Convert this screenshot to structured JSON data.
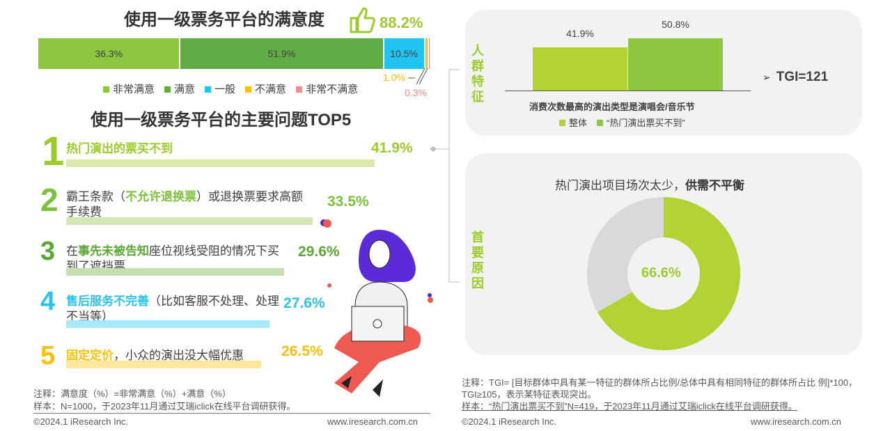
{
  "satisfaction": {
    "title": "使用一级票务平台的满意度",
    "total": "88.2%",
    "segments": [
      {
        "name": "非常满意",
        "value": 36.3,
        "label": "36.3%",
        "color": "#8dc63f"
      },
      {
        "name": "满意",
        "value": 51.9,
        "label": "51.9%",
        "color": "#62ac45"
      },
      {
        "name": "一般",
        "value": 10.5,
        "label": "10.5%",
        "color": "#1fc5f0"
      },
      {
        "name": "不满意",
        "value": 1.0,
        "label": "1.0%",
        "color": "#ffc000"
      },
      {
        "name": "非常不满意",
        "value": 0.3,
        "label": "0.3%",
        "color": "#f28b8b"
      }
    ]
  },
  "problems": {
    "title": "使用一级票务平台的主要问题TOP5",
    "items": [
      {
        "rank": "1",
        "pre": "",
        "hl": "热门演出的票买不到",
        "post": "",
        "value": 41.9,
        "label": "41.9%",
        "color": "#9ccc2c",
        "bar": "#dbeaa8"
      },
      {
        "rank": "2",
        "pre": "霸王条款（",
        "hl": "不允许退换票",
        "post": "）或退换票要求高额手续费",
        "value": 33.5,
        "label": "33.5%",
        "color": "#7cc13a",
        "bar": "#d3e8b2"
      },
      {
        "rank": "3",
        "pre": "在",
        "hl": "事先未被告知",
        "post": "座位视线受阻的情况下买到了遮挡票",
        "value": 29.6,
        "label": "29.6%",
        "color": "#5aa832",
        "bar": "#c5e0b0"
      },
      {
        "rank": "4",
        "pre": "",
        "hl": "售后服务不完善",
        "post": "（比如客服不处理、处理不当等）",
        "value": 27.6,
        "label": "27.6%",
        "color": "#2bc3ec",
        "bar": "#a6e9f8"
      },
      {
        "rank": "5",
        "pre": "",
        "hl": "固定定价",
        "post": "，小众的演出没大幅优惠",
        "value": 26.5,
        "label": "26.5%",
        "color": "#ffc000",
        "bar": "#ffe699"
      }
    ]
  },
  "left_notes": {
    "note": "注释：满意度（%）=非常满意（%）+满意（%）",
    "sample": "样本：N=1000，于2023年11月通过艾瑞iclick在线平台调研获得。",
    "copyright": "©2024.1 iResearch Inc.",
    "url": "www.iresearch.com.cn"
  },
  "chart_data": [
    {
      "type": "bar",
      "title": "使用一级票务平台的满意度",
      "categories": [
        "非常满意",
        "满意",
        "一般",
        "不满意",
        "非常不满意"
      ],
      "values": [
        36.3,
        51.9,
        10.5,
        1.0,
        0.3
      ],
      "stacked": true,
      "summary": "88.2%"
    },
    {
      "type": "bar",
      "title": "使用一级票务平台的主要问题TOP5",
      "categories": [
        "热门演出的票买不到",
        "霸王条款",
        "事先未被告知座位视线受阻",
        "售后服务不完善",
        "固定定价"
      ],
      "values": [
        41.9,
        33.5,
        29.6,
        27.6,
        26.5
      ]
    },
    {
      "type": "bar",
      "label_side": "人群特征",
      "xlabel": "消费次数最高的演出类型是演唱会/音乐节",
      "series": [
        {
          "name": "整体",
          "value": 41.9,
          "label": "41.9%",
          "color": "#b3d334"
        },
        {
          "name": "“热门演出票买不到”",
          "value": 50.8,
          "label": "50.8%",
          "color": "#8dc63f"
        }
      ],
      "ylim": [
        0,
        60
      ],
      "annotation": "TGI=121"
    },
    {
      "type": "pie",
      "label_side": "首要原因",
      "title_normal": "热门演出项目场次太少，",
      "title_bold": "供需不平衡",
      "values": [
        66.6,
        33.4
      ],
      "label": "66.6%",
      "colors": [
        "#b3d334",
        "#d9d9d9"
      ]
    }
  ],
  "right_notes": {
    "note": "注释：TGI= [目标群体中具有某一特征的群体所占比例/总体中具有相同特征的群体所占比 例]*100，TGI≥105，表示某特征表现突出。",
    "sample": "样本：“热门演出票买不到”N=419，于2023年11月通过艾瑞iclick在线平台调研获得。",
    "copyright": "©2024.1 iResearch Inc.",
    "url": "www.iresearch.com.cn"
  }
}
